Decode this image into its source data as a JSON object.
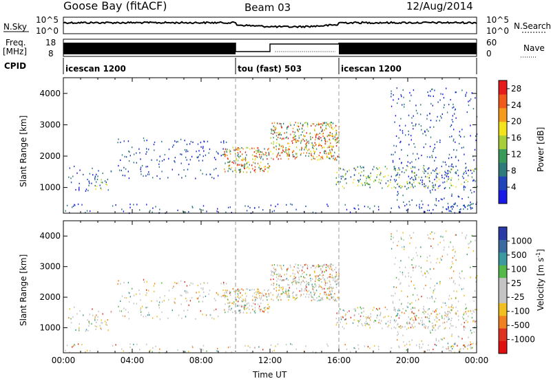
{
  "header": {
    "station": "Goose Bay (fitACF)",
    "beam": "Beam 03",
    "date": "12/Aug/2014"
  },
  "top_panels": {
    "nsky_label": "N.Sky",
    "nsearch_label": "N.Search",
    "noise_ticks": [
      "10^5",
      "10^0"
    ],
    "freq_label": "Freq.",
    "freq_unit": "[MHz]",
    "freq_ticks": [
      "18",
      "8"
    ],
    "nave_label": "Nave",
    "nave_ticks": [
      "60",
      "0"
    ],
    "cpid_label": "CPID",
    "cpid_segments": [
      {
        "label": "icescan 1200",
        "start_h": 0,
        "end_h": 10
      },
      {
        "label": "tou (fast) 503",
        "start_h": 10,
        "end_h": 16
      },
      {
        "label": "icescan 1200",
        "start_h": 16,
        "end_h": 24
      }
    ]
  },
  "colors": {
    "power_scale": [
      "#1a1ae6",
      "#2244bb",
      "#2f7a7a",
      "#3a9a5a",
      "#a8cf3a",
      "#f2e31b",
      "#f59a1b",
      "#f25a1b",
      "#e51a1a"
    ],
    "velocity_scale": [
      "#2a3aa6",
      "#3a6aa0",
      "#3a9aa0",
      "#54b84a",
      "#c4c4c4",
      "#c4c4c4",
      "#f0c020",
      "#f08020",
      "#e03020",
      "#e01010"
    ],
    "frame": "#000000"
  },
  "chart_data": [
    {
      "type": "heatmap",
      "panel": "power",
      "ylabel": "Slant Range [km]",
      "ylim": [
        180,
        4500
      ],
      "y_ticks": [
        "1000",
        "2000",
        "3000",
        "4000"
      ],
      "xlim_hours": [
        0,
        24
      ],
      "colorbar": {
        "label": "Power [dB]",
        "ticks": [
          "4",
          "8",
          "12",
          "16",
          "20",
          "24",
          "28"
        ],
        "range": [
          0,
          30
        ]
      },
      "scatter_regions": [
        {
          "x_h": [
            0.2,
            2.8
          ],
          "y_km": [
            900,
            1700
          ],
          "level": "weak"
        },
        {
          "x_h": [
            1.8,
            2.6
          ],
          "y_km": [
            900,
            1400
          ],
          "level": "medium"
        },
        {
          "x_h": [
            3.0,
            9.5
          ],
          "y_km": [
            1300,
            2600
          ],
          "level": "weak"
        },
        {
          "x_h": [
            9.3,
            12.0
          ],
          "y_km": [
            1500,
            2300
          ],
          "level": "strong"
        },
        {
          "x_h": [
            12.0,
            16.0
          ],
          "y_km": [
            1900,
            3100
          ],
          "level": "strong"
        },
        {
          "x_h": [
            15.8,
            24.0
          ],
          "y_km": [
            1000,
            1700
          ],
          "level": "medium"
        },
        {
          "x_h": [
            19.0,
            24.0
          ],
          "y_km": [
            300,
            4200
          ],
          "level": "weak"
        },
        {
          "x_h": [
            0.0,
            24.0
          ],
          "y_km": [
            200,
            500
          ],
          "level": "weak"
        }
      ]
    },
    {
      "type": "heatmap",
      "panel": "velocity",
      "ylabel": "Slant Range [km]",
      "ylim": [
        180,
        4500
      ],
      "y_ticks": [
        "1000",
        "2000",
        "3000",
        "4000"
      ],
      "xlim_hours": [
        0,
        24
      ],
      "xlabel": "Time UT",
      "x_ticks": [
        "00:00",
        "04:00",
        "08:00",
        "12:00",
        "16:00",
        "20:00",
        "00:00"
      ],
      "colorbar": {
        "label": "Velocity [m s",
        "label_sup": "-1",
        "label_close": "]",
        "ticks": [
          "1000",
          "500",
          "100",
          "25",
          "-25",
          "-100",
          "-500",
          "-1000"
        ]
      }
    }
  ]
}
